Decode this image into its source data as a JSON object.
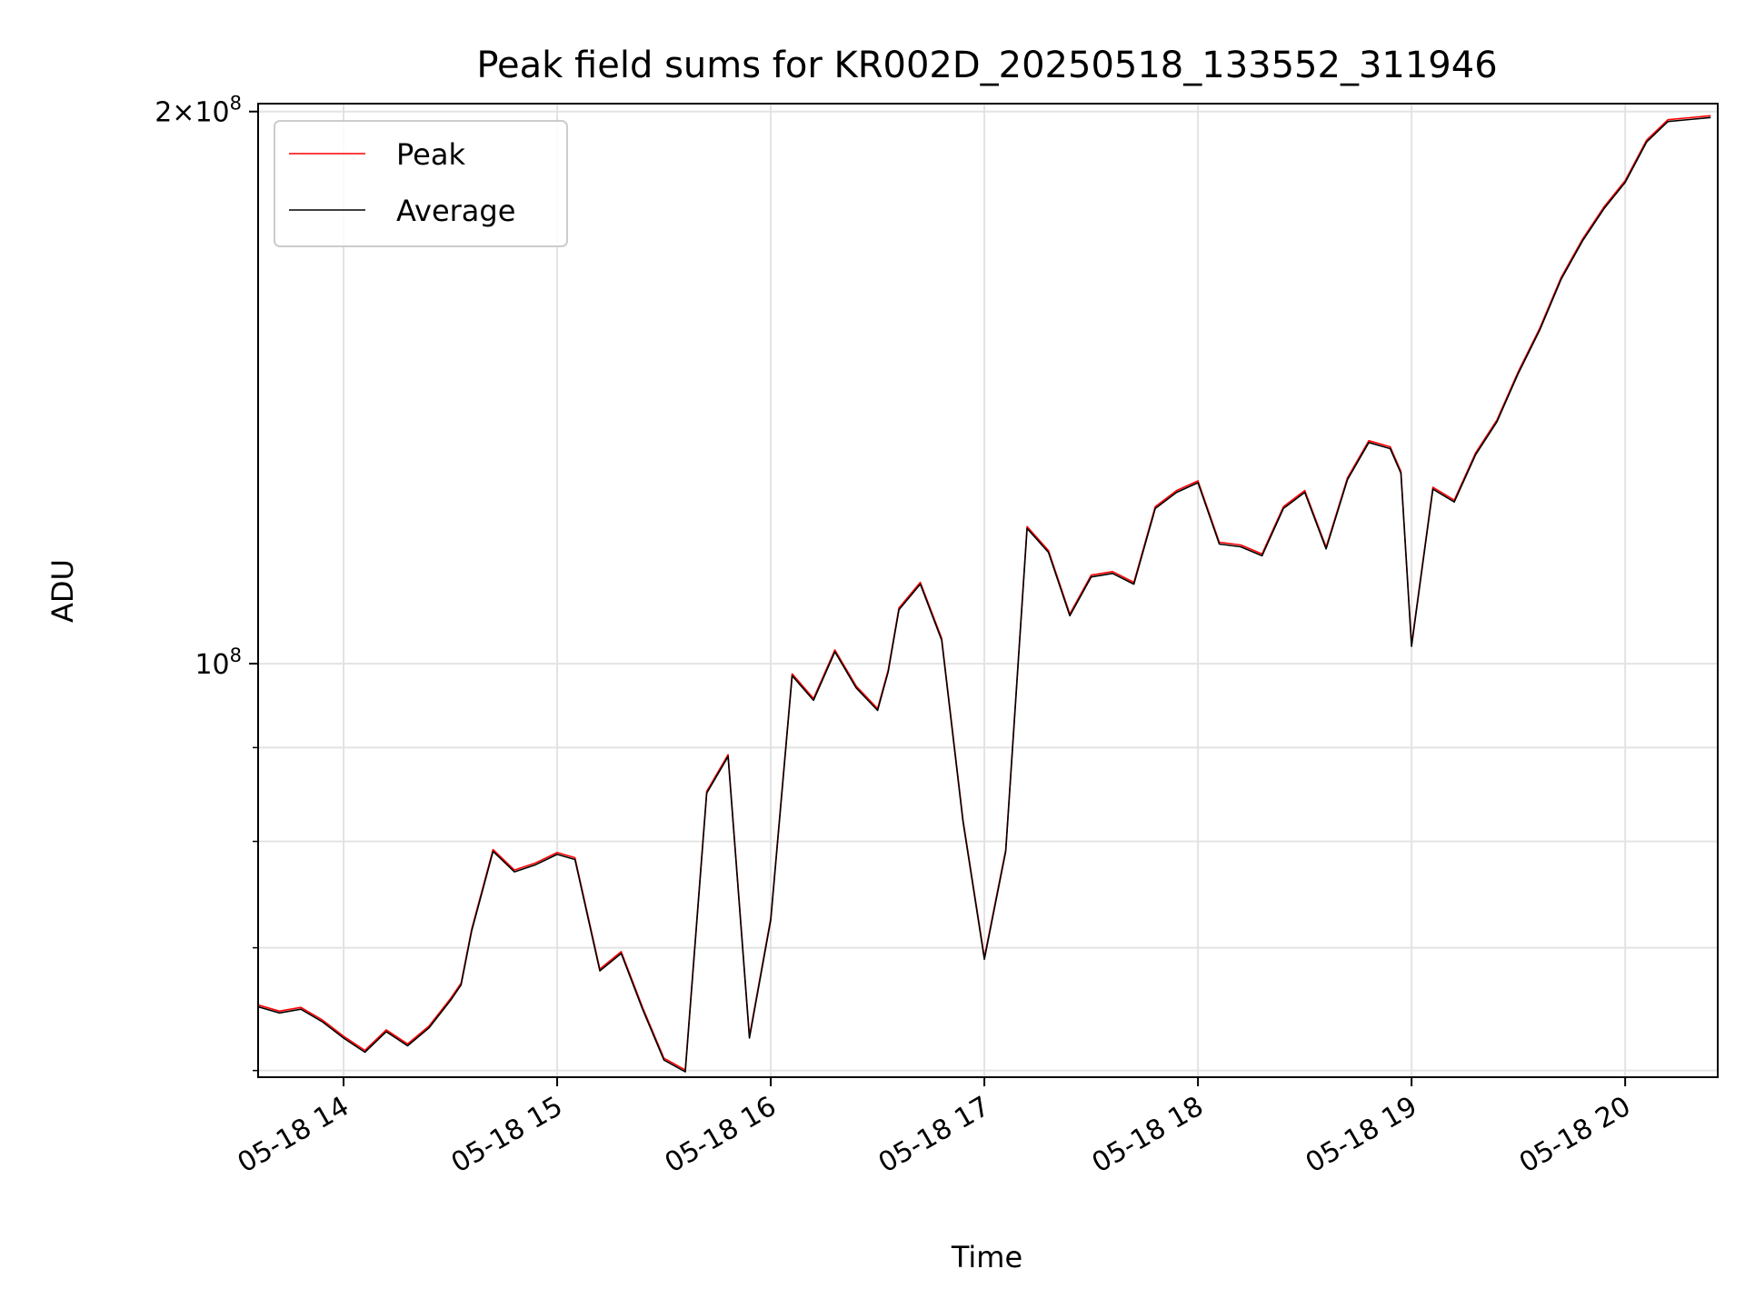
{
  "chart_data": {
    "type": "line",
    "title": "Peak field sums for KR002D_20250518_133552_311946",
    "xlabel": "Time",
    "ylabel": "ADU",
    "y_scale": "log",
    "ylim": [
      59500000,
      202000000
    ],
    "xlim": [
      "2025-05-18 13:36",
      "2025-05-18 20:26"
    ],
    "x_tick_labels": [
      "05-18 14",
      "05-18 15",
      "05-18 16",
      "05-18 17",
      "05-18 18",
      "05-18 19",
      "05-18 20"
    ],
    "x_tick_values": [
      "2025-05-18 14:00",
      "2025-05-18 15:00",
      "2025-05-18 16:00",
      "2025-05-18 17:00",
      "2025-05-18 18:00",
      "2025-05-18 19:00",
      "2025-05-18 20:00"
    ],
    "y_major_ticks": [
      {
        "value": 100000000,
        "mantissa": "",
        "exp": "8"
      },
      {
        "value": 200000000,
        "mantissa": "2",
        "exp": "8"
      }
    ],
    "y_minor_ticks": [
      60000000,
      70000000,
      80000000,
      90000000
    ],
    "grid": true,
    "legend_position": "upper left",
    "series": [
      {
        "name": "Peak",
        "color": "#ff0000"
      },
      {
        "name": "Average",
        "color": "#000000"
      }
    ],
    "x": [
      "2025-05-18 13:36",
      "2025-05-18 13:42",
      "2025-05-18 13:48",
      "2025-05-18 13:54",
      "2025-05-18 14:00",
      "2025-05-18 14:06",
      "2025-05-18 14:12",
      "2025-05-18 14:18",
      "2025-05-18 14:24",
      "2025-05-18 14:30",
      "2025-05-18 14:33",
      "2025-05-18 14:36",
      "2025-05-18 14:42",
      "2025-05-18 14:48",
      "2025-05-18 14:54",
      "2025-05-18 15:00",
      "2025-05-18 15:05",
      "2025-05-18 15:12",
      "2025-05-18 15:18",
      "2025-05-18 15:24",
      "2025-05-18 15:30",
      "2025-05-18 15:36",
      "2025-05-18 15:42",
      "2025-05-18 15:48",
      "2025-05-18 15:54",
      "2025-05-18 16:00",
      "2025-05-18 16:06",
      "2025-05-18 16:12",
      "2025-05-18 16:18",
      "2025-05-18 16:24",
      "2025-05-18 16:30",
      "2025-05-18 16:33",
      "2025-05-18 16:36",
      "2025-05-18 16:42",
      "2025-05-18 16:48",
      "2025-05-18 16:54",
      "2025-05-18 17:00",
      "2025-05-18 17:06",
      "2025-05-18 17:12",
      "2025-05-18 17:18",
      "2025-05-18 17:24",
      "2025-05-18 17:30",
      "2025-05-18 17:36",
      "2025-05-18 17:42",
      "2025-05-18 17:48",
      "2025-05-18 17:54",
      "2025-05-18 18:00",
      "2025-05-18 18:06",
      "2025-05-18 18:12",
      "2025-05-18 18:18",
      "2025-05-18 18:24",
      "2025-05-18 18:30",
      "2025-05-18 18:36",
      "2025-05-18 18:42",
      "2025-05-18 18:48",
      "2025-05-18 18:54",
      "2025-05-18 18:57",
      "2025-05-18 19:00",
      "2025-05-18 19:06",
      "2025-05-18 19:12",
      "2025-05-18 19:18",
      "2025-05-18 19:24",
      "2025-05-18 19:30",
      "2025-05-18 19:36",
      "2025-05-18 19:42",
      "2025-05-18 19:48",
      "2025-05-18 19:54",
      "2025-05-18 20:00",
      "2025-05-18 20:06",
      "2025-05-18 20:12",
      "2025-05-18 20:18",
      "2025-05-18 20:24"
    ],
    "values": [
      65000000,
      64500000,
      64800000,
      63800000,
      62500000,
      61400000,
      63000000,
      61900000,
      63300000,
      65500000,
      66800000,
      71500000,
      79000000,
      77000000,
      77700000,
      78700000,
      78200000,
      68000000,
      69500000,
      64800000,
      60800000,
      59900000,
      85000000,
      89000000,
      62500000,
      72500000,
      98500000,
      95500000,
      101500000,
      97000000,
      94300000,
      99000000,
      107000000,
      110500000,
      103000000,
      82000000,
      69000000,
      79000000,
      118500000,
      115000000,
      106200000,
      111500000,
      112000000,
      110500000,
      121500000,
      124000000,
      125500000,
      116200000,
      115800000,
      114500000,
      121500000,
      124000000,
      115500000,
      126000000,
      132000000,
      131000000,
      127000000,
      102200000,
      124500000,
      122500000,
      130000000,
      135500000,
      144000000,
      152000000,
      162000000,
      170000000,
      177000000,
      183000000,
      192500000,
      197500000,
      198000000,
      198500000
    ]
  }
}
